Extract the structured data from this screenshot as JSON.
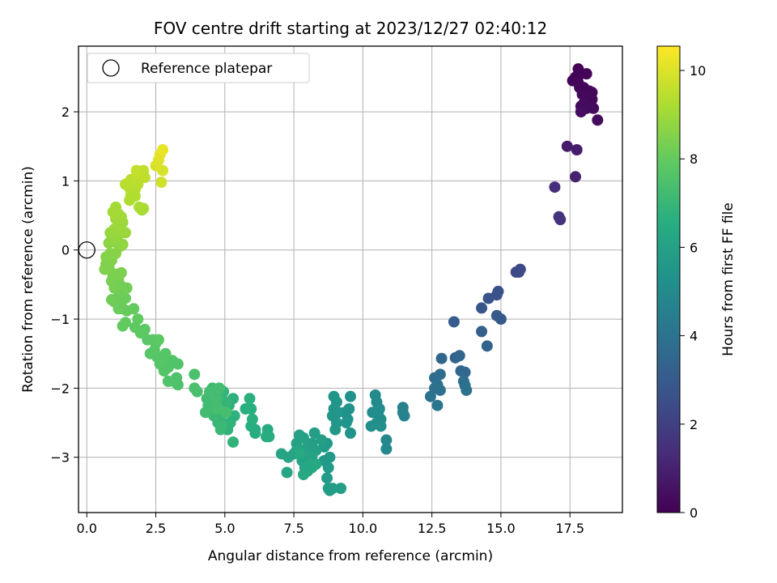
{
  "chart_data": {
    "type": "scatter",
    "title": "FOV centre drift starting at 2023/12/27 02:40:12",
    "xlabel": "Angular distance from reference (arcmin)",
    "ylabel": "Rotation from reference (arcmin)",
    "xlim": [
      -0.3,
      19.4
    ],
    "ylim": [
      -3.8,
      2.95
    ],
    "x_ticks": [
      0.0,
      2.5,
      5.0,
      7.5,
      10.0,
      12.5,
      15.0,
      17.5
    ],
    "x_tick_labels": [
      "0.0",
      "2.5",
      "5.0",
      "7.5",
      "10.0",
      "12.5",
      "15.0",
      "17.5"
    ],
    "y_ticks": [
      -3,
      -2,
      -1,
      0,
      1,
      2
    ],
    "y_tick_labels": [
      "−3",
      "−2",
      "−1",
      "0",
      "1",
      "2"
    ],
    "grid": true,
    "colormap": "viridis",
    "colorbar": {
      "label": "Hours from first FF file",
      "range": [
        0,
        10.55
      ],
      "ticks": [
        0,
        2,
        4,
        6,
        8,
        10
      ],
      "tick_labels": [
        "0",
        "2",
        "4",
        "6",
        "8",
        "10"
      ]
    },
    "legend": {
      "placement": "top-left",
      "entries": [
        {
          "label": "Reference platepar",
          "marker": "open-circle"
        }
      ]
    },
    "reference_point": {
      "x": 0.0,
      "y": 0.0
    },
    "points": [
      [
        17.8,
        2.62,
        0.05
      ],
      [
        17.9,
        2.55,
        0.05
      ],
      [
        18.1,
        2.55,
        0.1
      ],
      [
        17.6,
        2.45,
        0.1
      ],
      [
        17.7,
        2.5,
        0.1
      ],
      [
        17.8,
        2.42,
        0.15
      ],
      [
        17.85,
        2.35,
        0.15
      ],
      [
        18.0,
        2.35,
        0.15
      ],
      [
        18.2,
        2.3,
        0.2
      ],
      [
        18.3,
        2.28,
        0.2
      ],
      [
        17.95,
        2.25,
        0.2
      ],
      [
        18.1,
        2.2,
        0.25
      ],
      [
        18.2,
        2.15,
        0.25
      ],
      [
        18.3,
        2.18,
        0.25
      ],
      [
        18.0,
        2.12,
        0.3
      ],
      [
        17.9,
        2.08,
        0.3
      ],
      [
        18.1,
        2.05,
        0.3
      ],
      [
        18.35,
        2.05,
        0.35
      ],
      [
        18.5,
        1.88,
        0.35
      ],
      [
        17.9,
        2.0,
        0.4
      ],
      [
        17.4,
        1.5,
        0.8
      ],
      [
        17.75,
        1.45,
        0.85
      ],
      [
        17.7,
        1.06,
        1.0
      ],
      [
        16.95,
        0.91,
        1.4
      ],
      [
        17.1,
        0.48,
        1.6
      ],
      [
        17.15,
        0.44,
        1.6
      ],
      [
        15.7,
        -0.28,
        2.3
      ],
      [
        15.65,
        -0.32,
        2.35
      ],
      [
        15.55,
        -0.32,
        2.35
      ],
      [
        14.9,
        -0.6,
        2.6
      ],
      [
        14.85,
        -0.65,
        2.6
      ],
      [
        14.55,
        -0.7,
        2.7
      ],
      [
        14.3,
        -0.84,
        2.8
      ],
      [
        14.85,
        -0.95,
        2.9
      ],
      [
        15.0,
        -1.0,
        2.95
      ],
      [
        13.3,
        -1.04,
        3.1
      ],
      [
        14.3,
        -1.18,
        3.2
      ],
      [
        14.5,
        -1.39,
        3.3
      ],
      [
        13.35,
        -1.56,
        3.4
      ],
      [
        13.5,
        -1.53,
        3.45
      ],
      [
        12.85,
        -1.57,
        3.5
      ],
      [
        13.55,
        -1.75,
        3.6
      ],
      [
        13.7,
        -1.77,
        3.6
      ],
      [
        12.8,
        -1.8,
        3.7
      ],
      [
        12.6,
        -1.85,
        3.75
      ],
      [
        13.65,
        -1.9,
        3.8
      ],
      [
        12.7,
        -1.95,
        3.85
      ],
      [
        13.7,
        -1.96,
        3.85
      ],
      [
        12.6,
        -2.0,
        3.9
      ],
      [
        12.8,
        -2.03,
        3.9
      ],
      [
        13.75,
        -2.03,
        3.95
      ],
      [
        12.45,
        -2.12,
        4.0
      ],
      [
        12.7,
        -2.25,
        4.1
      ],
      [
        11.45,
        -2.28,
        4.6
      ],
      [
        11.5,
        -2.4,
        4.7
      ],
      [
        11.45,
        -2.35,
        4.7
      ],
      [
        10.85,
        -2.75,
        4.9
      ],
      [
        10.85,
        -2.88,
        4.95
      ],
      [
        10.45,
        -2.1,
        5.0
      ],
      [
        10.5,
        -2.2,
        5.0
      ],
      [
        10.6,
        -2.3,
        5.1
      ],
      [
        10.35,
        -2.35,
        5.1
      ],
      [
        10.55,
        -2.38,
        5.1
      ],
      [
        10.65,
        -2.45,
        5.15
      ],
      [
        10.3,
        -2.55,
        5.2
      ],
      [
        10.5,
        -2.5,
        5.2
      ],
      [
        10.65,
        -2.55,
        5.2
      ],
      [
        9.55,
        -2.12,
        5.3
      ],
      [
        9.5,
        -2.3,
        5.3
      ],
      [
        9.35,
        -2.35,
        5.35
      ],
      [
        9.45,
        -2.45,
        5.35
      ],
      [
        9.4,
        -2.5,
        5.4
      ],
      [
        9.55,
        -2.65,
        5.4
      ],
      [
        8.95,
        -2.12,
        5.45
      ],
      [
        9.05,
        -2.2,
        5.45
      ],
      [
        8.95,
        -2.3,
        5.5
      ],
      [
        9.1,
        -2.35,
        5.5
      ],
      [
        8.9,
        -2.4,
        5.55
      ],
      [
        9.05,
        -2.5,
        5.55
      ],
      [
        9.0,
        -2.6,
        5.6
      ],
      [
        8.7,
        -2.8,
        5.65
      ],
      [
        8.6,
        -2.85,
        5.7
      ],
      [
        8.8,
        -3.0,
        5.7
      ],
      [
        8.6,
        -3.05,
        5.7
      ],
      [
        8.75,
        -3.15,
        5.75
      ],
      [
        8.7,
        -3.3,
        5.75
      ],
      [
        8.8,
        -3.48,
        5.8
      ],
      [
        8.9,
        -3.45,
        5.8
      ],
      [
        8.75,
        -3.45,
        5.8
      ],
      [
        9.2,
        -3.45,
        5.85
      ],
      [
        8.25,
        -2.65,
        5.85
      ],
      [
        8.5,
        -2.75,
        5.9
      ],
      [
        8.15,
        -2.8,
        5.9
      ],
      [
        8.0,
        -2.85,
        5.95
      ],
      [
        8.3,
        -2.9,
        5.95
      ],
      [
        7.85,
        -2.72,
        6.0
      ],
      [
        7.7,
        -2.68,
        6.0
      ],
      [
        7.6,
        -2.8,
        6.05
      ],
      [
        7.75,
        -2.9,
        6.05
      ],
      [
        7.95,
        -2.95,
        6.1
      ],
      [
        8.15,
        -3.0,
        6.1
      ],
      [
        7.8,
        -3.05,
        6.1
      ],
      [
        7.6,
        -2.9,
        6.15
      ],
      [
        7.5,
        -2.95,
        6.15
      ],
      [
        7.3,
        -3.0,
        6.15
      ],
      [
        7.05,
        -2.95,
        6.2
      ],
      [
        7.25,
        -3.22,
        6.2
      ],
      [
        7.9,
        -3.15,
        6.2
      ],
      [
        8.0,
        -3.2,
        6.25
      ],
      [
        8.0,
        -3.12,
        6.25
      ],
      [
        8.15,
        -3.15,
        6.25
      ],
      [
        8.3,
        -3.1,
        6.3
      ],
      [
        7.85,
        -3.25,
        6.3
      ],
      [
        8.1,
        -3.1,
        6.3
      ],
      [
        7.7,
        -2.95,
        6.35
      ],
      [
        6.55,
        -2.6,
        6.4
      ],
      [
        6.6,
        -2.7,
        6.45
      ],
      [
        6.1,
        -2.6,
        6.5
      ],
      [
        6.1,
        -2.65,
        6.5
      ],
      [
        5.95,
        -2.55,
        6.55
      ],
      [
        6.5,
        -2.7,
        6.55
      ],
      [
        5.95,
        -2.3,
        6.6
      ],
      [
        5.75,
        -2.3,
        6.65
      ],
      [
        6.0,
        -2.45,
        6.65
      ],
      [
        5.9,
        -2.15,
        6.7
      ],
      [
        5.3,
        -2.15,
        6.7
      ],
      [
        5.15,
        -2.25,
        6.75
      ],
      [
        5.35,
        -2.4,
        6.75
      ],
      [
        5.2,
        -2.5,
        6.8
      ],
      [
        5.1,
        -2.6,
        6.8
      ],
      [
        5.3,
        -2.78,
        6.85
      ],
      [
        5.05,
        -2.2,
        6.9
      ],
      [
        4.95,
        -2.05,
        6.9
      ],
      [
        4.85,
        -2.45,
        7.0
      ],
      [
        4.75,
        -2.5,
        7.0
      ],
      [
        4.85,
        -2.6,
        7.05
      ],
      [
        4.9,
        -2.55,
        7.05
      ],
      [
        4.6,
        -2.4,
        7.1
      ],
      [
        4.75,
        -2.15,
        7.1
      ],
      [
        4.55,
        -2.0,
        7.15
      ],
      [
        4.5,
        -2.1,
        7.15
      ],
      [
        4.35,
        -2.15,
        7.2
      ],
      [
        4.4,
        -2.25,
        7.2
      ],
      [
        4.6,
        -2.3,
        7.25
      ],
      [
        4.3,
        -2.35,
        7.25
      ],
      [
        4.8,
        -2.0,
        7.3
      ],
      [
        4.45,
        -2.05,
        7.3
      ],
      [
        4.65,
        -2.15,
        7.3
      ],
      [
        4.75,
        -2.3,
        7.35
      ],
      [
        5.05,
        -2.35,
        7.35
      ],
      [
        4.0,
        -2.05,
        7.4
      ],
      [
        3.9,
        -2.0,
        7.45
      ],
      [
        3.9,
        -1.8,
        7.45
      ],
      [
        3.25,
        -1.85,
        7.5
      ],
      [
        3.3,
        -1.95,
        7.5
      ],
      [
        3.15,
        -1.9,
        7.55
      ],
      [
        2.95,
        -1.9,
        7.55
      ],
      [
        3.3,
        -1.65,
        7.6
      ],
      [
        3.1,
        -1.6,
        7.6
      ],
      [
        2.95,
        -1.7,
        7.6
      ],
      [
        2.8,
        -1.75,
        7.65
      ],
      [
        2.65,
        -1.65,
        7.65
      ],
      [
        2.85,
        -1.5,
        7.7
      ],
      [
        2.55,
        -1.55,
        7.7
      ],
      [
        2.7,
        -1.6,
        7.7
      ],
      [
        2.45,
        -1.45,
        7.75
      ],
      [
        2.3,
        -1.5,
        7.75
      ],
      [
        2.5,
        -1.35,
        7.8
      ],
      [
        2.4,
        -1.3,
        7.8
      ],
      [
        2.2,
        -1.3,
        7.8
      ],
      [
        2.6,
        -1.3,
        7.85
      ],
      [
        2.1,
        -1.15,
        7.85
      ],
      [
        1.95,
        -1.2,
        7.9
      ],
      [
        1.75,
        -1.12,
        7.9
      ],
      [
        1.85,
        -1.0,
        7.95
      ],
      [
        1.4,
        -1.05,
        7.95
      ],
      [
        1.3,
        -1.1,
        8.0
      ],
      [
        1.7,
        -0.85,
        8.0
      ],
      [
        1.45,
        -0.88,
        8.05
      ],
      [
        1.3,
        -0.85,
        8.05
      ],
      [
        1.15,
        -0.85,
        8.1
      ],
      [
        1.25,
        -0.75,
        8.1
      ],
      [
        1.4,
        -0.7,
        8.1
      ],
      [
        1.1,
        -0.7,
        8.15
      ],
      [
        1.0,
        -0.75,
        8.15
      ],
      [
        0.9,
        -0.72,
        8.2
      ],
      [
        1.3,
        -0.6,
        8.2
      ],
      [
        1.45,
        -0.55,
        8.25
      ],
      [
        1.2,
        -0.5,
        8.25
      ],
      [
        1.0,
        -0.55,
        8.3
      ],
      [
        1.15,
        -0.4,
        8.3
      ],
      [
        0.9,
        -0.45,
        8.35
      ],
      [
        0.95,
        -0.38,
        8.35
      ],
      [
        1.05,
        -0.35,
        8.4
      ],
      [
        1.25,
        -0.33,
        8.4
      ],
      [
        0.7,
        -0.2,
        8.45
      ],
      [
        0.8,
        -0.25,
        8.45
      ],
      [
        0.65,
        -0.28,
        8.5
      ],
      [
        0.9,
        -0.15,
        8.5
      ],
      [
        0.7,
        -0.1,
        8.55
      ],
      [
        0.85,
        -0.05,
        8.55
      ],
      [
        1.05,
        -0.05,
        8.6
      ],
      [
        1.2,
        0.05,
        8.6
      ],
      [
        1.1,
        0.1,
        8.65
      ],
      [
        0.8,
        0.1,
        8.7
      ],
      [
        0.9,
        0.15,
        8.75
      ],
      [
        1.3,
        0.08,
        8.75
      ],
      [
        1.1,
        0.18,
        8.8
      ],
      [
        0.85,
        0.25,
        8.85
      ],
      [
        1.25,
        0.25,
        8.85
      ],
      [
        1.4,
        0.25,
        8.9
      ],
      [
        1.0,
        0.3,
        8.9
      ],
      [
        1.15,
        0.35,
        8.95
      ],
      [
        1.3,
        0.4,
        8.95
      ],
      [
        1.05,
        0.45,
        9.0
      ],
      [
        1.25,
        0.48,
        9.0
      ],
      [
        1.05,
        0.55,
        9.05
      ],
      [
        1.15,
        0.52,
        9.05
      ],
      [
        0.95,
        0.55,
        9.1
      ],
      [
        1.05,
        0.62,
        9.1
      ],
      [
        2.0,
        0.58,
        9.15
      ],
      [
        2.05,
        0.6,
        9.15
      ],
      [
        1.9,
        0.62,
        9.2
      ],
      [
        1.55,
        0.72,
        9.25
      ],
      [
        1.6,
        0.8,
        9.3
      ],
      [
        1.75,
        0.78,
        9.3
      ],
      [
        1.75,
        0.88,
        9.35
      ],
      [
        1.55,
        0.9,
        9.35
      ],
      [
        1.4,
        0.95,
        9.4
      ],
      [
        1.7,
        0.98,
        9.4
      ],
      [
        1.85,
        0.95,
        9.45
      ],
      [
        1.6,
        1.02,
        9.45
      ],
      [
        1.8,
        1.05,
        9.5
      ],
      [
        2.1,
        1.05,
        9.5
      ],
      [
        1.95,
        1.1,
        9.55
      ],
      [
        2.05,
        1.15,
        9.55
      ],
      [
        1.8,
        1.15,
        9.6
      ],
      [
        2.7,
        0.98,
        9.8
      ],
      [
        2.75,
        1.15,
        9.9
      ],
      [
        2.5,
        1.22,
        9.95
      ],
      [
        2.6,
        1.3,
        10.0
      ],
      [
        2.65,
        1.38,
        10.1
      ],
      [
        2.75,
        1.45,
        10.2
      ]
    ]
  }
}
